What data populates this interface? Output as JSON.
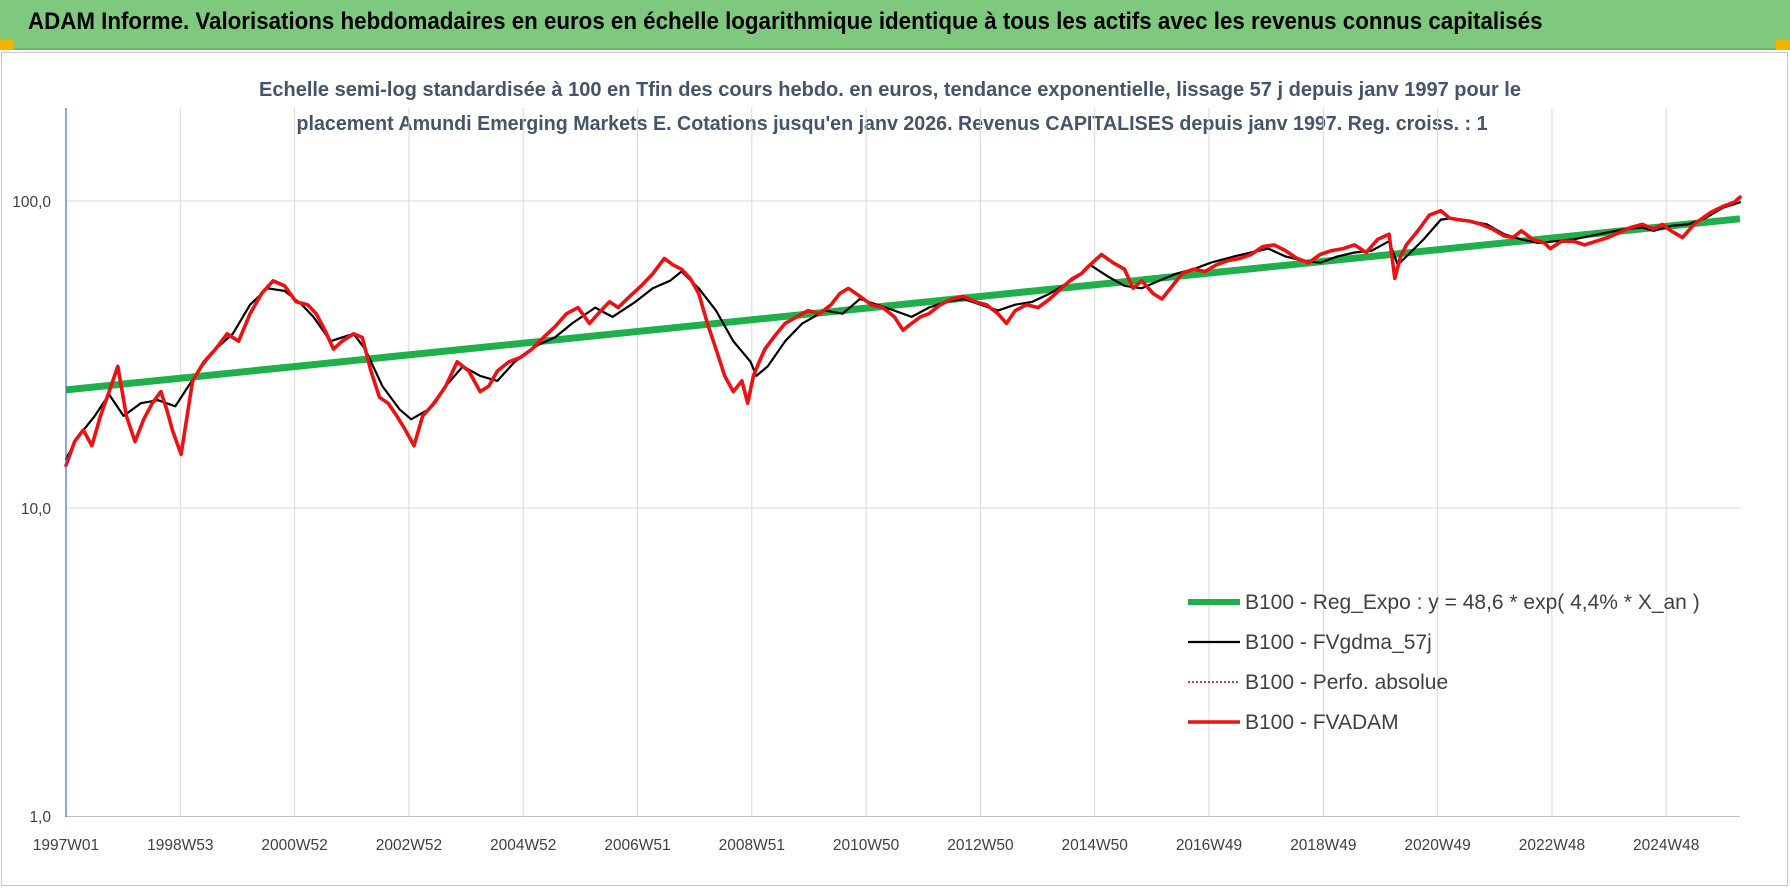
{
  "banner": {
    "title": "ADAM Informe. Valorisations hebdomadaires en euros en échelle logarithmique identique à tous les actifs avec les revenus connus capitalisés",
    "background": "#7fc97f",
    "corner_color": "#f0b400"
  },
  "chart_data": {
    "type": "line",
    "title_lines": [
      "Echelle semi-log standardisée à 100 en Tfin des cours hebdo. en euros, tendance exponentielle, lissage 57 j depuis janv 1997 pour le",
      "placement Amundi Emerging Markets E. Cotations jusqu'en janv 2026. Revenus CAPITALISES depuis janv 1997. Reg. croiss. : 1"
    ],
    "y_scale": "log",
    "ylim": [
      1,
      200
    ],
    "y_ticks": [
      "1,0",
      "10,0",
      "100,0"
    ],
    "x_ticks": [
      "1997W01",
      "1998W53",
      "2000W52",
      "2002W52",
      "2004W52",
      "2006W51",
      "2008W51",
      "2010W50",
      "2012W50",
      "2014W50",
      "2016W49",
      "2018W49",
      "2020W49",
      "2022W48",
      "2024W48"
    ],
    "xlim": [
      1997.0,
      2026.1
    ],
    "grid": true,
    "legend_position": "bottom-right",
    "series": [
      {
        "name": "B100 - Reg_Expo : y = 48,6 * exp( 4,4% *  X_an )",
        "color": "#1fb04b",
        "style": "trend",
        "x": [
          1997.0,
          2026.1
        ],
        "y": [
          24.3,
          87.5
        ]
      },
      {
        "name": "B100 - FVgdma_57j",
        "color": "#000000",
        "style": "smooth",
        "x": [
          1997.0,
          1997.2,
          1997.5,
          1997.75,
          1998.0,
          1998.3,
          1998.6,
          1998.9,
          1999.3,
          1999.6,
          1999.9,
          2000.2,
          2000.5,
          2000.8,
          2001.1,
          2001.3,
          2001.6,
          2001.8,
          2002.0,
          2002.2,
          2002.5,
          2002.8,
          2003.0,
          2003.3,
          2003.6,
          2003.9,
          2004.2,
          2004.5,
          2004.8,
          2005.2,
          2005.5,
          2005.8,
          2006.2,
          2006.5,
          2006.9,
          2007.2,
          2007.5,
          2007.7,
          2008.0,
          2008.3,
          2008.6,
          2008.9,
          2009.0,
          2009.2,
          2009.5,
          2009.8,
          2010.2,
          2010.5,
          2010.8,
          2011.1,
          2011.4,
          2011.7,
          2012.0,
          2012.3,
          2012.6,
          2012.9,
          2013.2,
          2013.5,
          2013.8,
          2014.1,
          2014.4,
          2014.6,
          2014.8,
          2015.1,
          2015.4,
          2015.7,
          2016.0,
          2016.3,
          2016.6,
          2016.9,
          2017.3,
          2017.6,
          2017.9,
          2018.2,
          2018.5,
          2018.8,
          2019.1,
          2019.4,
          2019.7,
          2020.0,
          2020.15,
          2020.3,
          2020.6,
          2020.9,
          2021.1,
          2021.4,
          2021.7,
          2022.0,
          2022.3,
          2022.6,
          2022.9,
          2023.2,
          2023.5,
          2023.8,
          2024.1,
          2024.4,
          2024.6,
          2024.9,
          2025.2,
          2025.5,
          2025.8,
          2026.1
        ],
        "y": [
          14.5,
          17.0,
          20.0,
          23.5,
          20.0,
          22.0,
          22.5,
          21.5,
          28.0,
          33.0,
          37.0,
          46.0,
          52.0,
          51.0,
          46.0,
          42.0,
          35.0,
          36.0,
          37.0,
          33.0,
          25.0,
          21.0,
          19.5,
          21.0,
          25.0,
          29.0,
          27.0,
          26.0,
          30.0,
          34.0,
          36.0,
          40.0,
          45.0,
          42.0,
          47.0,
          52.0,
          55.0,
          59.0,
          52.0,
          44.0,
          35.0,
          30.0,
          27.0,
          29.0,
          35.0,
          40.0,
          44.0,
          43.0,
          48.0,
          46.0,
          44.0,
          42.0,
          45.0,
          47.0,
          48.0,
          46.0,
          44.0,
          46.0,
          47.0,
          50.0,
          54.0,
          57.0,
          62.0,
          57.0,
          53.0,
          52.0,
          55.0,
          58.0,
          60.0,
          63.0,
          66.0,
          68.0,
          70.0,
          66.0,
          64.0,
          63.0,
          66.0,
          68.0,
          69.0,
          74.0,
          62.0,
          66.0,
          75.0,
          87.0,
          88.0,
          86.0,
          84.0,
          78.0,
          75.0,
          73.0,
          74.0,
          75.0,
          77.0,
          79.0,
          81.0,
          82.0,
          80.0,
          83.0,
          84.0,
          88.0,
          95.0,
          99.0
        ]
      },
      {
        "name": "B100 - Perfo. absolue",
        "color": "#c00000",
        "style": "dotted",
        "x": [],
        "y": []
      },
      {
        "name": "B100 - FVADAM",
        "color": "#ee1111",
        "style": "thick",
        "x": [
          1997.0,
          1997.15,
          1997.3,
          1997.45,
          1997.6,
          1997.75,
          1997.9,
          1998.05,
          1998.2,
          1998.35,
          1998.5,
          1998.65,
          1998.75,
          1998.85,
          1999.0,
          1999.2,
          1999.4,
          1999.6,
          1999.8,
          2000.0,
          2000.2,
          2000.4,
          2000.6,
          2000.8,
          2001.0,
          2001.2,
          2001.35,
          2001.5,
          2001.65,
          2001.8,
          2002.0,
          2002.15,
          2002.3,
          2002.45,
          2002.6,
          2002.75,
          2002.9,
          2003.05,
          2003.2,
          2003.4,
          2003.6,
          2003.8,
          2004.0,
          2004.2,
          2004.35,
          2004.5,
          2004.7,
          2004.9,
          2005.1,
          2005.3,
          2005.5,
          2005.7,
          2005.9,
          2006.1,
          2006.3,
          2006.45,
          2006.6,
          2006.8,
          2007.0,
          2007.2,
          2007.4,
          2007.55,
          2007.7,
          2007.85,
          2008.0,
          2008.15,
          2008.3,
          2008.45,
          2008.6,
          2008.75,
          2008.85,
          2008.95,
          2009.05,
          2009.15,
          2009.3,
          2009.5,
          2009.7,
          2009.9,
          2010.1,
          2010.3,
          2010.45,
          2010.6,
          2010.8,
          2011.0,
          2011.2,
          2011.4,
          2011.55,
          2011.7,
          2011.85,
          2012.0,
          2012.2,
          2012.4,
          2012.6,
          2012.8,
          2013.0,
          2013.2,
          2013.35,
          2013.5,
          2013.7,
          2013.9,
          2014.1,
          2014.3,
          2014.5,
          2014.65,
          2014.8,
          2015.0,
          2015.2,
          2015.4,
          2015.55,
          2015.7,
          2015.9,
          2016.05,
          2016.2,
          2016.4,
          2016.6,
          2016.8,
          2017.0,
          2017.2,
          2017.4,
          2017.6,
          2017.8,
          2018.0,
          2018.2,
          2018.4,
          2018.6,
          2018.8,
          2019.0,
          2019.2,
          2019.4,
          2019.6,
          2019.8,
          2020.0,
          2020.1,
          2020.2,
          2020.3,
          2020.5,
          2020.7,
          2020.9,
          2021.05,
          2021.2,
          2021.4,
          2021.6,
          2021.8,
          2022.0,
          2022.15,
          2022.3,
          2022.5,
          2022.7,
          2022.8,
          2023.0,
          2023.2,
          2023.4,
          2023.6,
          2023.8,
          2024.0,
          2024.2,
          2024.4,
          2024.6,
          2024.75,
          2024.9,
          2025.1,
          2025.3,
          2025.45,
          2025.6,
          2025.8,
          2026.0,
          2026.1
        ],
        "y": [
          13.8,
          16.5,
          18.0,
          16.0,
          20.0,
          24.0,
          29.0,
          20.0,
          16.5,
          19.5,
          22.0,
          24.0,
          21.0,
          18.0,
          15.0,
          26.0,
          30.0,
          33.0,
          37.0,
          35.0,
          43.0,
          50.0,
          55.0,
          53.0,
          47.0,
          46.0,
          43.0,
          38.0,
          33.0,
          35.0,
          37.0,
          36.0,
          28.0,
          23.0,
          22.0,
          20.0,
          18.0,
          16.0,
          20.0,
          22.0,
          25.0,
          30.0,
          28.0,
          24.0,
          25.0,
          28.0,
          30.0,
          31.0,
          33.0,
          36.0,
          39.0,
          43.0,
          45.0,
          40.0,
          44.0,
          47.0,
          45.0,
          49.0,
          53.0,
          58.0,
          65.0,
          62.0,
          60.0,
          56.0,
          50.0,
          40.0,
          33.0,
          27.0,
          24.0,
          26.0,
          22.0,
          27.0,
          30.0,
          33.0,
          36.0,
          40.0,
          42.0,
          44.0,
          43.0,
          46.0,
          50.0,
          52.0,
          49.0,
          46.0,
          45.0,
          42.0,
          38.0,
          40.0,
          42.0,
          43.0,
          46.0,
          48.0,
          49.0,
          47.0,
          46.0,
          43.0,
          40.0,
          44.0,
          46.0,
          45.0,
          48.0,
          52.0,
          56.0,
          58.0,
          62.0,
          67.0,
          63.0,
          60.0,
          52.0,
          55.0,
          50.0,
          48.0,
          52.0,
          58.0,
          60.0,
          59.0,
          62.0,
          64.0,
          65.0,
          67.0,
          71.0,
          72.0,
          69.0,
          65.0,
          63.0,
          67.0,
          69.0,
          70.0,
          72.0,
          68.0,
          75.0,
          78.0,
          56.0,
          66.0,
          72.0,
          80.0,
          90.0,
          93.0,
          88.0,
          87.0,
          86.0,
          84.0,
          81.0,
          77.0,
          76.0,
          80.0,
          75.0,
          73.0,
          70.0,
          74.0,
          74.0,
          72.0,
          74.0,
          76.0,
          79.0,
          82.0,
          84.0,
          81.0,
          84.0,
          80.0,
          76.0,
          84.0,
          88.0,
          92.0,
          96.0,
          99.0,
          103.0
        ]
      }
    ]
  }
}
